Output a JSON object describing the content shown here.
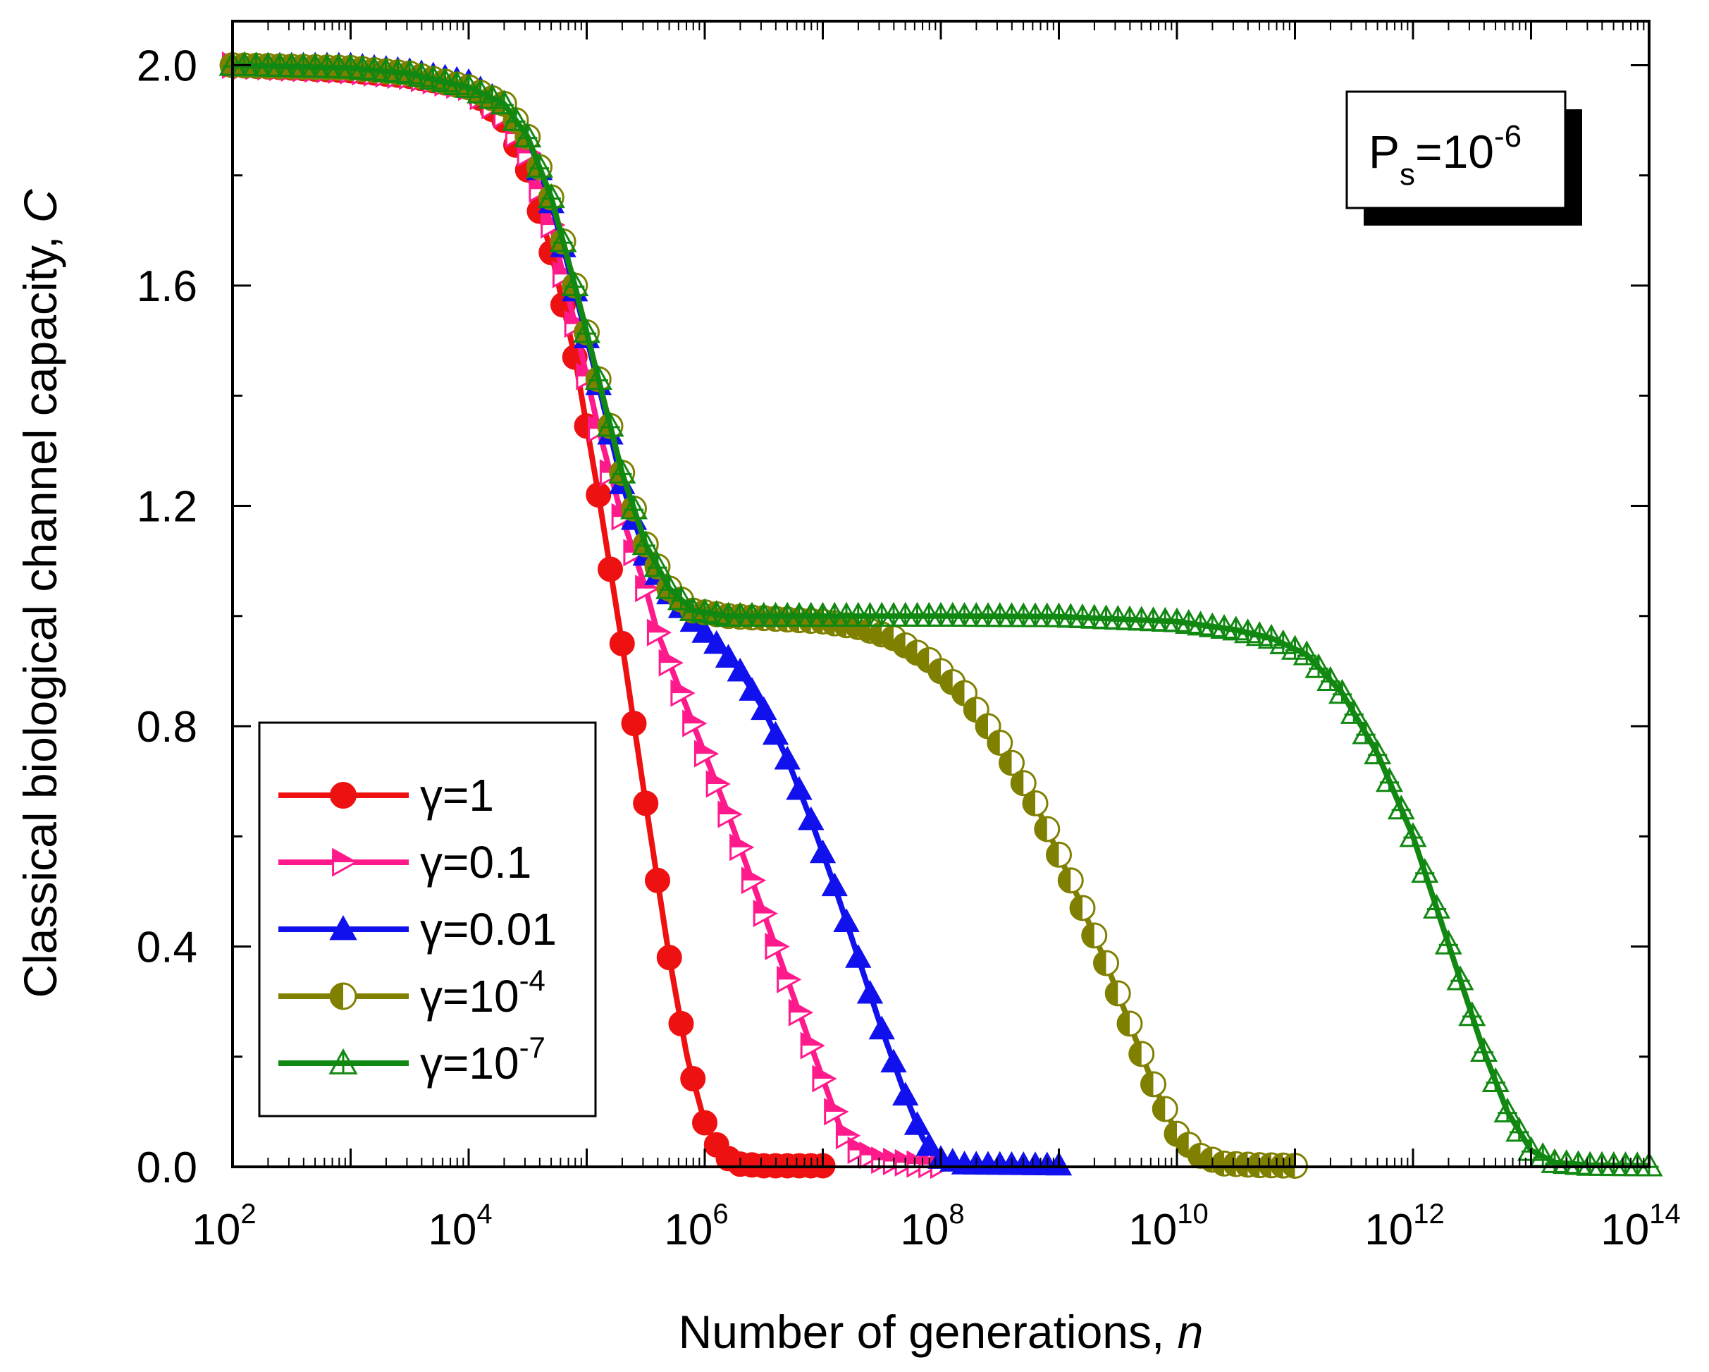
{
  "chart_data": {
    "type": "line",
    "x_scale": "log10",
    "xlabel": "Number of generations, ",
    "xlabel_var": "n",
    "ylabel": "Classical biological channel capacity, ",
    "ylabel_var": "C",
    "xlim_log10": [
      2,
      14
    ],
    "ylim": [
      0.0,
      2.08
    ],
    "x_ticks": [
      {
        "base": "10",
        "exp": "2"
      },
      {
        "base": "10",
        "exp": "4"
      },
      {
        "base": "10",
        "exp": "6"
      },
      {
        "base": "10",
        "exp": "8"
      },
      {
        "base": "10",
        "exp": "10"
      },
      {
        "base": "10",
        "exp": "12"
      },
      {
        "base": "10",
        "exp": "14"
      }
    ],
    "y_ticks": [
      "0.0",
      "0.4",
      "0.8",
      "1.2",
      "1.6",
      "2.0"
    ],
    "y_tick_values": [
      0.0,
      0.4,
      0.8,
      1.2,
      1.6,
      2.0
    ],
    "annotation": {
      "base": "P",
      "sub": "s",
      "mid": "=10",
      "sup": "-6"
    },
    "series": [
      {
        "name": "γ=1",
        "label_base": "γ=1",
        "label_sup": "",
        "color": "#ee1111",
        "marker": "circle-filled",
        "x_end_log10": 7.0,
        "points": [
          [
            2,
            2.0
          ],
          [
            3,
            1.99
          ],
          [
            3.5,
            1.98
          ],
          [
            4,
            1.96
          ],
          [
            4.3,
            1.9
          ],
          [
            4.5,
            1.81
          ],
          [
            4.7,
            1.66
          ],
          [
            4.9,
            1.47
          ],
          [
            5.1,
            1.22
          ],
          [
            5.3,
            0.95
          ],
          [
            5.5,
            0.66
          ],
          [
            5.7,
            0.38
          ],
          [
            5.85,
            0.2
          ],
          [
            6.0,
            0.08
          ],
          [
            6.15,
            0.02
          ],
          [
            6.3,
            0.005
          ],
          [
            6.5,
            0.002
          ],
          [
            7.0,
            0.002
          ]
        ]
      },
      {
        "name": "γ=0.1",
        "label_base": "γ=0.1",
        "label_sup": "",
        "color": "#ff1a8c",
        "marker": "triangle-right-half",
        "x_end_log10": 8.0,
        "points": [
          [
            2,
            2.0
          ],
          [
            3,
            1.99
          ],
          [
            3.5,
            1.98
          ],
          [
            4,
            1.96
          ],
          [
            4.3,
            1.91
          ],
          [
            4.5,
            1.84
          ],
          [
            4.7,
            1.71
          ],
          [
            4.9,
            1.53
          ],
          [
            5.1,
            1.34
          ],
          [
            5.3,
            1.18
          ],
          [
            5.5,
            1.05
          ],
          [
            5.6,
            0.97
          ],
          [
            5.8,
            0.86
          ],
          [
            6.0,
            0.75
          ],
          [
            6.2,
            0.64
          ],
          [
            6.4,
            0.52
          ],
          [
            6.6,
            0.4
          ],
          [
            6.8,
            0.28
          ],
          [
            7.0,
            0.16
          ],
          [
            7.15,
            0.07
          ],
          [
            7.3,
            0.03
          ],
          [
            7.5,
            0.012
          ],
          [
            7.8,
            0.005
          ],
          [
            8.0,
            0.003
          ]
        ]
      },
      {
        "name": "γ=0.01",
        "label_base": "γ=0.01",
        "label_sup": "",
        "color": "#1111ee",
        "marker": "triangle-up-filled",
        "x_end_log10": 9.0,
        "points": [
          [
            2,
            2.0
          ],
          [
            3,
            2.0
          ],
          [
            3.5,
            1.99
          ],
          [
            4,
            1.97
          ],
          [
            4.3,
            1.93
          ],
          [
            4.5,
            1.87
          ],
          [
            4.7,
            1.75
          ],
          [
            4.9,
            1.59
          ],
          [
            5.1,
            1.42
          ],
          [
            5.3,
            1.24
          ],
          [
            5.5,
            1.11
          ],
          [
            5.7,
            1.04
          ],
          [
            5.9,
            0.99
          ],
          [
            6.1,
            0.95
          ],
          [
            6.3,
            0.9
          ],
          [
            6.5,
            0.83
          ],
          [
            6.7,
            0.74
          ],
          [
            6.9,
            0.63
          ],
          [
            7.1,
            0.51
          ],
          [
            7.3,
            0.38
          ],
          [
            7.5,
            0.25
          ],
          [
            7.7,
            0.13
          ],
          [
            7.85,
            0.05
          ],
          [
            8.0,
            0.015
          ],
          [
            8.2,
            0.005
          ],
          [
            9.0,
            0.003
          ]
        ]
      },
      {
        "name": "γ=10^-4",
        "label_base": "γ=10",
        "label_sup": "-4",
        "color": "#808000",
        "marker": "circle-half",
        "x_end_log10": 11.0,
        "points": [
          [
            2,
            2.0
          ],
          [
            3,
            1.995
          ],
          [
            3.5,
            1.985
          ],
          [
            4,
            1.96
          ],
          [
            4.3,
            1.93
          ],
          [
            4.5,
            1.87
          ],
          [
            4.7,
            1.76
          ],
          [
            4.9,
            1.6
          ],
          [
            5.1,
            1.43
          ],
          [
            5.3,
            1.26
          ],
          [
            5.5,
            1.13
          ],
          [
            5.7,
            1.05
          ],
          [
            5.9,
            1.01
          ],
          [
            6.2,
            1.0
          ],
          [
            6.6,
            0.995
          ],
          [
            7.0,
            0.99
          ],
          [
            7.3,
            0.98
          ],
          [
            7.6,
            0.96
          ],
          [
            7.9,
            0.92
          ],
          [
            8.2,
            0.86
          ],
          [
            8.5,
            0.77
          ],
          [
            8.8,
            0.66
          ],
          [
            9.1,
            0.52
          ],
          [
            9.4,
            0.37
          ],
          [
            9.6,
            0.26
          ],
          [
            9.8,
            0.15
          ],
          [
            10.0,
            0.06
          ],
          [
            10.2,
            0.02
          ],
          [
            10.4,
            0.006
          ],
          [
            10.7,
            0.003
          ],
          [
            11.0,
            0.002
          ]
        ]
      },
      {
        "name": "γ=10^-7",
        "label_base": "γ=10",
        "label_sup": "-7",
        "color": "#118811",
        "marker": "triangle-up-cross",
        "x_end_log10": 14.0,
        "points": [
          [
            2,
            2.0
          ],
          [
            3,
            1.995
          ],
          [
            3.5,
            1.985
          ],
          [
            4,
            1.96
          ],
          [
            4.3,
            1.93
          ],
          [
            4.5,
            1.87
          ],
          [
            4.7,
            1.76
          ],
          [
            4.9,
            1.6
          ],
          [
            5.1,
            1.43
          ],
          [
            5.3,
            1.26
          ],
          [
            5.5,
            1.13
          ],
          [
            5.7,
            1.05
          ],
          [
            5.9,
            1.01
          ],
          [
            6.2,
            1.0
          ],
          [
            8.0,
            1.0
          ],
          [
            9.0,
            0.999
          ],
          [
            10.0,
            0.99
          ],
          [
            10.5,
            0.975
          ],
          [
            10.8,
            0.96
          ],
          [
            11.1,
            0.93
          ],
          [
            11.4,
            0.86
          ],
          [
            11.7,
            0.75
          ],
          [
            12.0,
            0.6
          ],
          [
            12.2,
            0.47
          ],
          [
            12.4,
            0.34
          ],
          [
            12.6,
            0.21
          ],
          [
            12.8,
            0.1
          ],
          [
            13.0,
            0.03
          ],
          [
            13.2,
            0.008
          ],
          [
            13.5,
            0.003
          ],
          [
            14.0,
            0.002
          ]
        ]
      }
    ]
  }
}
